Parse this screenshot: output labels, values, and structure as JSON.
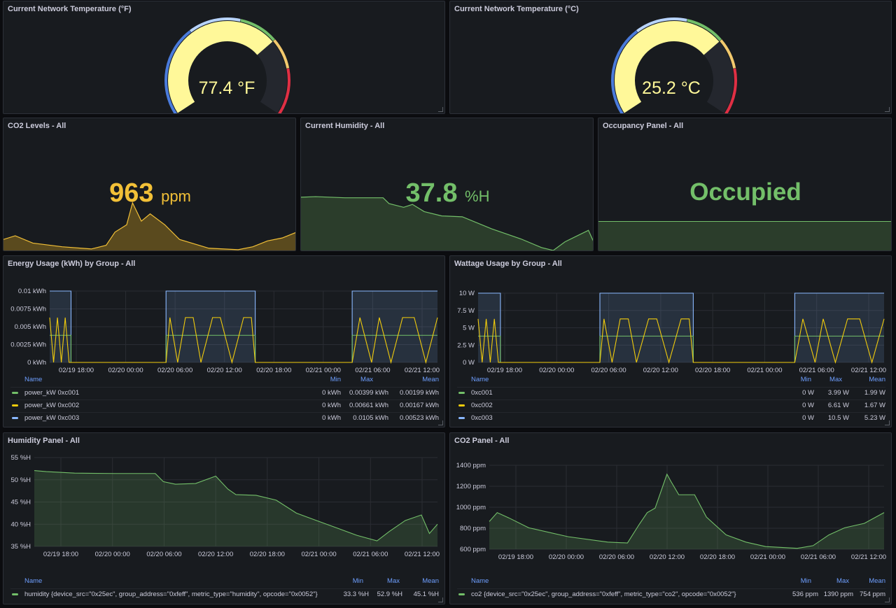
{
  "temp_f": {
    "title": "Current Network Temperature (°F)",
    "value": "77.4 °F",
    "fraction": 0.7
  },
  "temp_c": {
    "title": "Current Network Temperature (°C)",
    "value": "25.2 °C",
    "fraction": 0.7
  },
  "co2_stat": {
    "title": "CO2 Levels - All",
    "value": "963",
    "unit": "ppm",
    "color": "#f2c037"
  },
  "humidity_stat": {
    "title": "Current Humidity - All",
    "value": "37.8",
    "unit": "%H",
    "color": "#73bf69"
  },
  "occupancy": {
    "title": "Occupancy Panel - All",
    "value": "Occupied",
    "color": "#73bf69"
  },
  "energy": {
    "title": "Energy Usage (kWh) by Group - All",
    "yticks": [
      "0.01 kWh",
      "0.0075 kWh",
      "0.005 kWh",
      "0.0025 kWh",
      "0 kWh"
    ],
    "xticks": [
      "02/19 18:00",
      "02/20 00:00",
      "02/20 06:00",
      "02/20 12:00",
      "02/20 18:00",
      "02/21 00:00",
      "02/21 06:00",
      "02/21 12:00"
    ],
    "legend_headers": {
      "name": "Name",
      "min": "Min",
      "max": "Max",
      "mean": "Mean"
    },
    "legend": [
      {
        "name": "power_kW 0xc001",
        "min": "0 kWh",
        "max": "0.00399 kWh",
        "mean": "0.00199 kWh",
        "color": "#73bf69"
      },
      {
        "name": "power_kW 0xc002",
        "min": "0 kWh",
        "max": "0.00661 kWh",
        "mean": "0.00167 kWh",
        "color": "#f2cc0c"
      },
      {
        "name": "power_kW 0xc003",
        "min": "0 kWh",
        "max": "0.0105 kWh",
        "mean": "0.00523 kWh",
        "color": "#8ab8ff"
      }
    ]
  },
  "wattage": {
    "title": "Wattage Usage by Group - All",
    "yticks": [
      "10 W",
      "7.5 W",
      "5 W",
      "2.5 W",
      "0 W"
    ],
    "xticks": [
      "02/19 18:00",
      "02/20 00:00",
      "02/20 06:00",
      "02/20 12:00",
      "02/20 18:00",
      "02/21 00:00",
      "02/21 06:00",
      "02/21 12:00"
    ],
    "legend_headers": {
      "name": "Name",
      "min": "Min",
      "max": "Max",
      "mean": "Mean"
    },
    "legend": [
      {
        "name": "0xc001",
        "min": "0 W",
        "max": "3.99 W",
        "mean": "1.99 W",
        "color": "#73bf69"
      },
      {
        "name": "0xc002",
        "min": "0 W",
        "max": "6.61 W",
        "mean": "1.67 W",
        "color": "#f2cc0c"
      },
      {
        "name": "0xc003",
        "min": "0 W",
        "max": "10.5 W",
        "mean": "5.23 W",
        "color": "#8ab8ff"
      }
    ]
  },
  "humidity_panel": {
    "title": "Humidity Panel - All",
    "yticks": [
      "55 %H",
      "50 %H",
      "45 %H",
      "40 %H",
      "35 %H"
    ],
    "xticks": [
      "02/19 18:00",
      "02/20 00:00",
      "02/20 06:00",
      "02/20 12:00",
      "02/20 18:00",
      "02/21 00:00",
      "02/21 06:00",
      "02/21 12:00"
    ],
    "legend_headers": {
      "name": "Name",
      "min": "Min",
      "max": "Max",
      "mean": "Mean"
    },
    "legend": [
      {
        "name": "humidity {device_src=\"0x25ec\", group_address=\"0xfeff\", metric_type=\"humidity\", opcode=\"0x0052\"}",
        "min": "33.3 %H",
        "max": "52.9 %H",
        "mean": "45.1 %H",
        "color": "#73bf69"
      }
    ]
  },
  "co2_panel": {
    "title": "CO2 Panel - All",
    "yticks": [
      "1400 ppm",
      "1200 ppm",
      "1000 ppm",
      "800 ppm",
      "600 ppm"
    ],
    "xticks": [
      "02/19 18:00",
      "02/20 00:00",
      "02/20 06:00",
      "02/20 12:00",
      "02/20 18:00",
      "02/21 00:00",
      "02/21 06:00",
      "02/21 12:00"
    ],
    "legend_headers": {
      "name": "Name",
      "min": "Min",
      "max": "Max",
      "mean": "Mean"
    },
    "legend": [
      {
        "name": "co2 {device_src=\"0x25ec\", group_address=\"0xfeff\", metric_type=\"co2\", opcode=\"0x0052\"}",
        "min": "536 ppm",
        "max": "1390 ppm",
        "mean": "754 ppm",
        "color": "#73bf69"
      }
    ]
  },
  "chart_data": [
    {
      "type": "line",
      "name": "energy",
      "series": [
        {
          "name": "power_kW 0xc003",
          "x": [
            0,
            0.055,
            0.055,
            0.3,
            0.3,
            0.53,
            0.53,
            0.78,
            0.78,
            1.0
          ],
          "values": [
            0.0105,
            0.0105,
            0,
            0,
            0.0105,
            0.0105,
            0,
            0,
            0.0105,
            0.0105
          ]
        },
        {
          "name": "power_kW 0xc001",
          "x": [
            0,
            0.055,
            0.055,
            0.3,
            0.3,
            0.53,
            0.53,
            0.78,
            0.78,
            1.0
          ],
          "values": [
            0.00399,
            0.00399,
            0,
            0,
            0.00399,
            0.00399,
            0,
            0,
            0.00399,
            0.00399
          ]
        },
        {
          "name": "power_kW 0xc002",
          "x": [
            0,
            0.01,
            0.02,
            0.03,
            0.04,
            0.05,
            0.06,
            0.3,
            0.31,
            0.33,
            0.35,
            0.37,
            0.39,
            0.42,
            0.44,
            0.47,
            0.5,
            0.52,
            0.53,
            0.78,
            0.8,
            0.83,
            0.85,
            0.88,
            0.91,
            0.94,
            0.97,
            1.0
          ],
          "values": [
            0.0066,
            0,
            0.0066,
            0,
            0.0066,
            0,
            0,
            0,
            0.0066,
            0,
            0.0066,
            0.0066,
            0,
            0.0066,
            0.0066,
            0,
            0.0066,
            0.0066,
            0,
            0,
            0.0066,
            0,
            0.0066,
            0,
            0.0066,
            0.0066,
            0,
            0.0066
          ]
        }
      ],
      "ylim": [
        0,
        0.0105
      ]
    },
    {
      "type": "line",
      "name": "wattage",
      "series": [
        {
          "name": "0xc003",
          "x": [
            0,
            0.055,
            0.055,
            0.3,
            0.3,
            0.53,
            0.53,
            0.78,
            0.78,
            1.0
          ],
          "values": [
            10.5,
            10.5,
            0,
            0,
            10.5,
            10.5,
            0,
            0,
            10.5,
            10.5
          ]
        },
        {
          "name": "0xc001",
          "x": [
            0,
            0.055,
            0.055,
            0.3,
            0.3,
            0.53,
            0.53,
            0.78,
            0.78,
            1.0
          ],
          "values": [
            3.99,
            3.99,
            0,
            0,
            3.99,
            3.99,
            0,
            0,
            3.99,
            3.99
          ]
        },
        {
          "name": "0xc002",
          "x": [
            0,
            0.01,
            0.02,
            0.03,
            0.04,
            0.05,
            0.06,
            0.3,
            0.31,
            0.33,
            0.35,
            0.37,
            0.39,
            0.42,
            0.44,
            0.47,
            0.5,
            0.52,
            0.53,
            0.78,
            0.8,
            0.83,
            0.85,
            0.88,
            0.91,
            0.94,
            0.97,
            1.0
          ],
          "values": [
            6.6,
            0,
            6.6,
            0,
            6.6,
            0,
            0,
            0,
            6.6,
            0,
            6.6,
            6.6,
            0,
            6.6,
            6.6,
            0,
            6.6,
            6.6,
            0,
            0,
            6.6,
            0,
            6.6,
            0,
            6.6,
            6.6,
            0,
            6.6
          ]
        }
      ],
      "ylim": [
        0,
        10.5
      ]
    },
    {
      "type": "area",
      "name": "humidity",
      "series": [
        {
          "name": "humidity",
          "x": [
            0,
            0.03,
            0.1,
            0.2,
            0.3,
            0.32,
            0.35,
            0.4,
            0.45,
            0.48,
            0.5,
            0.55,
            0.6,
            0.65,
            0.7,
            0.75,
            0.8,
            0.85,
            0.88,
            0.92,
            0.96,
            0.98,
            1.0
          ],
          "values": [
            52.5,
            52.2,
            51.8,
            51.7,
            51.7,
            49.5,
            48.8,
            49.0,
            51.0,
            47.5,
            46.0,
            45.8,
            44.5,
            41.0,
            39.0,
            37.0,
            35.0,
            33.5,
            36.0,
            39.0,
            40.5,
            35.5,
            38.0
          ]
        }
      ],
      "ylim": [
        32,
        56
      ]
    },
    {
      "type": "area",
      "name": "co2",
      "series": [
        {
          "name": "co2",
          "x": [
            0,
            0.02,
            0.05,
            0.1,
            0.2,
            0.3,
            0.35,
            0.38,
            0.4,
            0.42,
            0.45,
            0.46,
            0.48,
            0.52,
            0.55,
            0.6,
            0.65,
            0.7,
            0.78,
            0.82,
            0.86,
            0.9,
            0.95,
            1.0
          ],
          "values": [
            850,
            950,
            890,
            780,
            680,
            620,
            610,
            820,
            950,
            1000,
            1380,
            1300,
            1150,
            1150,
            900,
            700,
            620,
            570,
            550,
            580,
            700,
            780,
            830,
            950
          ]
        }
      ],
      "ylim": [
        540,
        1480
      ]
    },
    {
      "type": "area",
      "name": "co2_spark",
      "series": [
        {
          "name": "co2",
          "x": [
            0,
            0.04,
            0.1,
            0.2,
            0.3,
            0.35,
            0.38,
            0.42,
            0.44,
            0.47,
            0.5,
            0.55,
            0.6,
            0.7,
            0.8,
            0.85,
            0.9,
            0.95,
            1.0
          ],
          "values": [
            700,
            750,
            650,
            600,
            570,
            620,
            800,
            900,
            1200,
            950,
            1050,
            900,
            700,
            580,
            560,
            600,
            680,
            720,
            800
          ]
        }
      ],
      "ylim": [
        530,
        1400
      ]
    },
    {
      "type": "area",
      "name": "humidity_spark",
      "series": [
        {
          "name": "humidity",
          "x": [
            0,
            0.05,
            0.15,
            0.28,
            0.3,
            0.35,
            0.38,
            0.42,
            0.48,
            0.55,
            0.65,
            0.75,
            0.82,
            0.86,
            0.9,
            0.95,
            0.98,
            1.0
          ],
          "values": [
            52,
            52.2,
            51.8,
            51.8,
            49.8,
            48.5,
            49.5,
            47.0,
            45.5,
            45.2,
            41.0,
            37.5,
            34.5,
            33.5,
            36.5,
            39.0,
            40.5,
            36.0
          ]
        }
      ],
      "ylim": [
        33,
        60
      ]
    }
  ]
}
